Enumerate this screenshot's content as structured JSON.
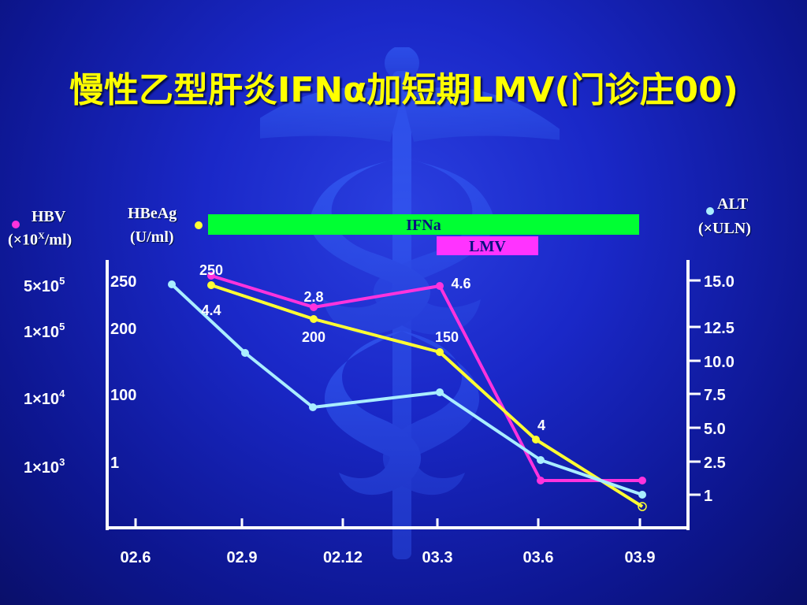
{
  "title": "慢性乙型肝炎IFNα加短期LMV(门诊庄00)",
  "colors": {
    "hbv": "#ff33dd",
    "hbeag": "#ffff33",
    "alt": "#aaeeff",
    "ifna_bar": "#00ff33",
    "lmv_bar": "#ff33ff",
    "axis": "#ffffff"
  },
  "legend": {
    "hbv_title": "HBV",
    "hbv_unit_prefix": "(×10",
    "hbv_unit_sup": "X",
    "hbv_unit_suffix": "/ml)",
    "hbeag_title": "HBeAg",
    "hbeag_unit": "(U/ml)",
    "alt_title": "ALT",
    "alt_unit": "(×ULN)"
  },
  "treatment": {
    "ifna_label": "IFNa",
    "lmv_label": "LMV"
  },
  "chart_data": {
    "type": "line",
    "x_ticks": [
      "02.6",
      "02.9",
      "02.12",
      "03.3",
      "03.6",
      "03.9"
    ],
    "left_axis_hbv": [
      {
        "mantissa": "5×10",
        "exp": "5"
      },
      {
        "mantissa": "1×10",
        "exp": "5"
      },
      {
        "mantissa": "1×10",
        "exp": "4"
      },
      {
        "mantissa": "1×10",
        "exp": "3"
      }
    ],
    "left_axis_hbeag": [
      "250",
      "200",
      "100",
      "1"
    ],
    "right_axis_alt": [
      "15.0",
      "12.5",
      "10.0",
      "7.5",
      "5.0",
      "2.5",
      "1"
    ],
    "series": [
      {
        "name": "HBV",
        "axis": "hbv",
        "points": [
          {
            "x": "02.7",
            "y": "5×10^5"
          },
          {
            "x": "02.11",
            "y": "4.4"
          },
          {
            "x": "03.3",
            "y": "4.6"
          },
          {
            "x": "03.6",
            "y": "<10^3"
          },
          {
            "x": "03.9",
            "y": "<10^3"
          }
        ],
        "point_labels": [
          "4.4",
          "4.6"
        ]
      },
      {
        "name": "HBeAg",
        "axis": "hbeag",
        "points": [
          {
            "x": "02.7",
            "y": 250
          },
          {
            "x": "02.11",
            "y": 200
          },
          {
            "x": "03.3",
            "y": 150
          },
          {
            "x": "03.6",
            "y": 4
          },
          {
            "x": "03.9",
            "y": 1
          }
        ],
        "point_labels": [
          "250",
          "2.8",
          "200",
          "150",
          "4"
        ]
      },
      {
        "name": "ALT",
        "axis": "alt",
        "points": [
          {
            "x": "02.6",
            "y": 15.0
          },
          {
            "x": "02.8",
            "y": 12.0
          },
          {
            "x": "02.11",
            "y": 7.5
          },
          {
            "x": "03.3",
            "y": 8.5
          },
          {
            "x": "03.6",
            "y": 3.0
          },
          {
            "x": "03.9",
            "y": 1.0
          }
        ]
      }
    ]
  }
}
